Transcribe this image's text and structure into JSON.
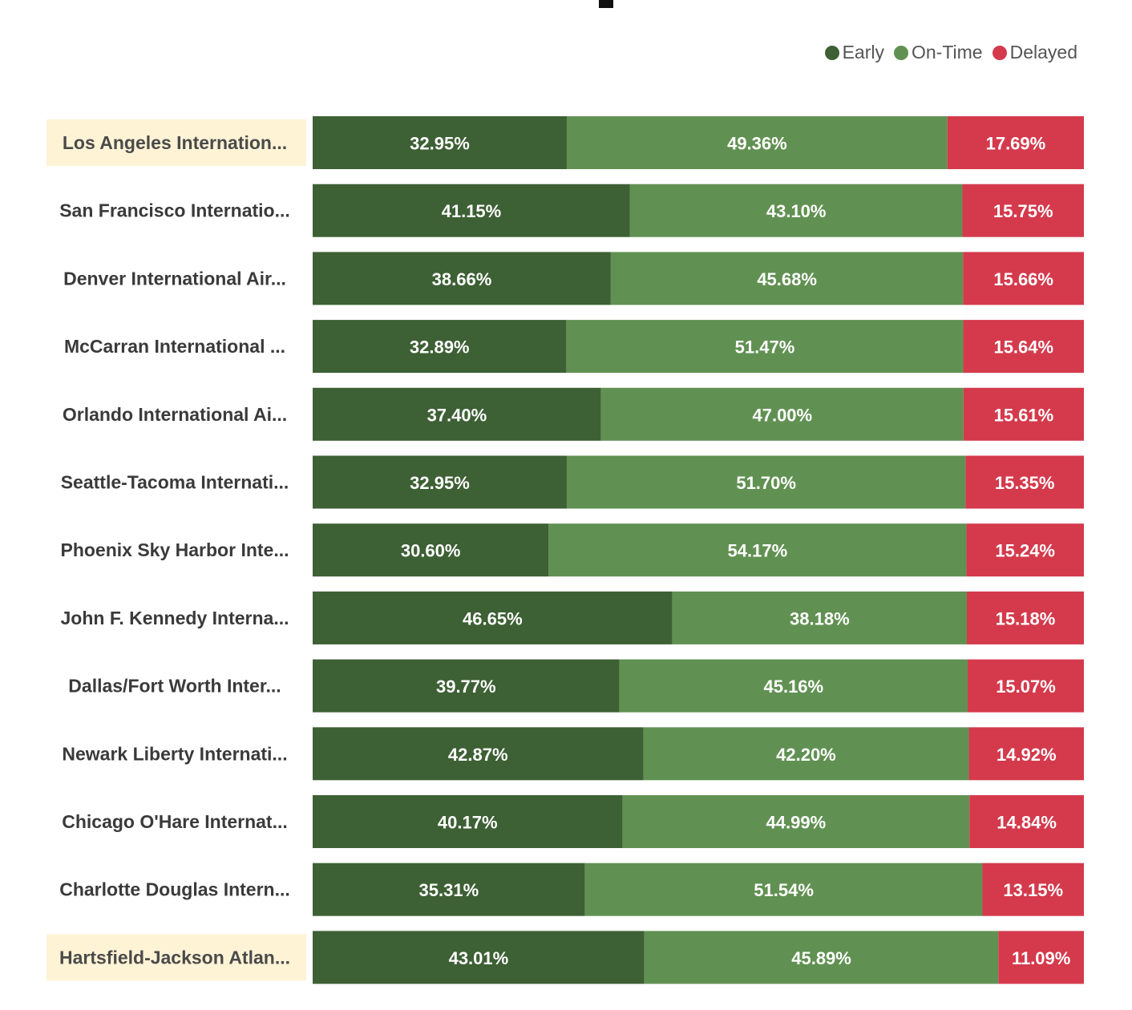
{
  "chart_data": {
    "type": "bar",
    "orientation": "horizontal",
    "stacked": "100%",
    "title": "",
    "legend_position": "top-right",
    "series": [
      {
        "name": "Early",
        "color": "#3d6034",
        "values": [
          32.95,
          41.15,
          38.66,
          32.89,
          37.4,
          32.95,
          30.6,
          46.65,
          39.77,
          42.87,
          40.17,
          35.31,
          43.01
        ]
      },
      {
        "name": "On-Time",
        "color": "#619152",
        "values": [
          49.36,
          43.1,
          45.68,
          51.47,
          47.0,
          51.7,
          54.17,
          38.18,
          45.16,
          42.2,
          44.99,
          51.54,
          45.89
        ]
      },
      {
        "name": "Delayed",
        "color": "#d43a4c",
        "values": [
          17.69,
          15.75,
          15.66,
          15.64,
          15.61,
          15.35,
          15.24,
          15.18,
          15.07,
          14.92,
          14.84,
          13.15,
          11.09
        ]
      }
    ],
    "value_labels": [
      [
        "32.95%",
        "49.36%",
        "17.69%"
      ],
      [
        "41.15%",
        "43.10%",
        "15.75%"
      ],
      [
        "38.66%",
        "45.68%",
        "15.66%"
      ],
      [
        "32.89%",
        "51.47%",
        "15.64%"
      ],
      [
        "37.40%",
        "47.00%",
        "15.61%"
      ],
      [
        "32.95%",
        "51.70%",
        "15.35%"
      ],
      [
        "30.60%",
        "54.17%",
        "15.24%"
      ],
      [
        "46.65%",
        "38.18%",
        "15.18%"
      ],
      [
        "39.77%",
        "45.16%",
        "15.07%"
      ],
      [
        "42.87%",
        "42.20%",
        "14.92%"
      ],
      [
        "40.17%",
        "44.99%",
        "14.84%"
      ],
      [
        "35.31%",
        "51.54%",
        "13.15%"
      ],
      [
        "43.01%",
        "45.89%",
        "11.09%"
      ]
    ],
    "categories": [
      "Los Angeles Internation...",
      "San Francisco Internatio...",
      "Denver International Air...",
      "McCarran International ...",
      "Orlando International Ai...",
      "Seattle-Tacoma Internati...",
      "Phoenix Sky Harbor Inte...",
      "John F. Kennedy Interna...",
      "Dallas/Fort Worth Inter...",
      "Newark Liberty Internati...",
      "Chicago O'Hare Internat...",
      "Charlotte Douglas Intern...",
      "Hartsfield-Jackson Atlan..."
    ],
    "highlighted_categories": [
      0,
      12
    ],
    "highlight_color": "#fff3d6"
  }
}
